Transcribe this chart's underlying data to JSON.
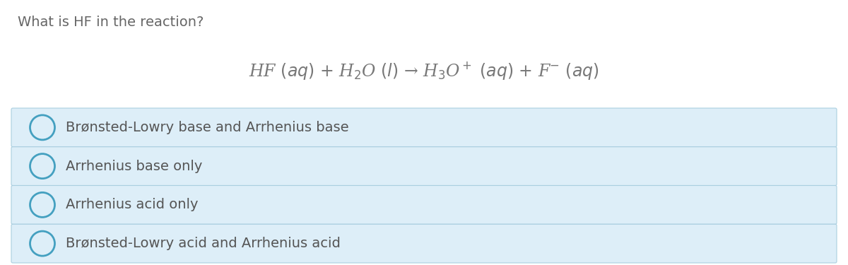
{
  "background_color": "#ffffff",
  "question_text": "What is HF in the reaction?",
  "question_color": "#666666",
  "question_fontsize": 14,
  "equation": "HF $(aq)$ + H$_2$O $(l)$ → H$_3$O$^+$ $(aq)$ + F$^{−}$ $(aq)$",
  "equation_color": "#777777",
  "equation_fontsize": 17,
  "options": [
    "Brønsted-Lowry base and Arrhenius base",
    "Arrhenius base only",
    "Arrhenius acid only",
    "Brønsted-Lowry acid and Arrhenius acid"
  ],
  "option_fontsize": 14,
  "option_text_color": "#555555",
  "option_bg_color": "#ddeef8",
  "option_border_color": "#aacfe0",
  "circle_edge_color": "#44a0c0",
  "circle_lw": 2.0,
  "fig_width": 12.0,
  "fig_height": 3.75,
  "dpi": 100
}
